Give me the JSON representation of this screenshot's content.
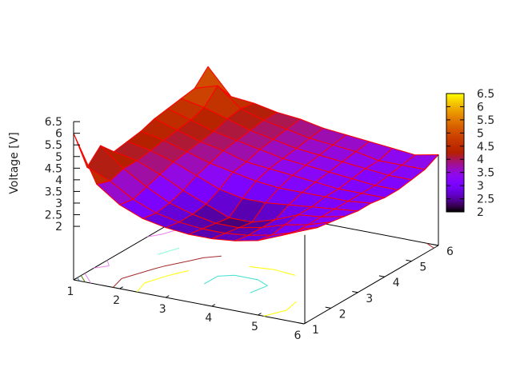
{
  "chart_data": {
    "type": "surface",
    "zlabel": "Voltage [V]",
    "x": [
      1,
      1.5,
      2,
      2.5,
      3,
      3.5,
      4,
      4.5,
      5,
      5.5,
      6
    ],
    "y": [
      1,
      1.5,
      2,
      2.5,
      3,
      3.5,
      4,
      4.5,
      5,
      5.5,
      6
    ],
    "z": [
      [
        6.0,
        4.0,
        3.3,
        2.9,
        2.7,
        2.6,
        2.6,
        2.7,
        2.9,
        3.3,
        3.8
      ],
      [
        4.2,
        3.8,
        3.2,
        2.8,
        2.6,
        2.5,
        2.5,
        2.6,
        2.8,
        3.1,
        3.5
      ],
      [
        4.8,
        4.0,
        3.4,
        2.9,
        2.6,
        2.4,
        2.4,
        2.6,
        2.9,
        3.1,
        3.4
      ],
      [
        4.2,
        4.0,
        3.6,
        3.1,
        2.7,
        2.3,
        2.3,
        2.6,
        3.0,
        3.1,
        3.3
      ],
      [
        4.3,
        4.1,
        3.8,
        3.4,
        3.0,
        2.8,
        2.8,
        2.9,
        3.0,
        3.1,
        3.2
      ],
      [
        4.4,
        4.2,
        3.9,
        3.6,
        3.4,
        3.2,
        3.1,
        3.1,
        3.1,
        3.1,
        3.2
      ],
      [
        4.6,
        4.3,
        4.0,
        3.8,
        3.5,
        3.4,
        3.3,
        3.2,
        3.1,
        3.1,
        3.1
      ],
      [
        4.7,
        4.4,
        4.1,
        3.9,
        3.7,
        3.5,
        3.4,
        3.3,
        3.2,
        3.1,
        3.1
      ],
      [
        4.8,
        4.6,
        4.3,
        4.0,
        3.8,
        3.6,
        3.5,
        3.4,
        3.3,
        3.2,
        3.2
      ],
      [
        4.9,
        5.2,
        4.4,
        4.1,
        3.9,
        3.7,
        3.6,
        3.5,
        3.3,
        3.3,
        3.3
      ],
      [
        5.5,
        4.4,
        4.3,
        4.1,
        4.0,
        3.8,
        3.7,
        3.6,
        3.5,
        3.4,
        3.6
      ]
    ],
    "xlim": [
      1,
      6
    ],
    "ylim": [
      1,
      6
    ],
    "zlim": [
      2,
      6.5
    ],
    "x_ticks": [
      "1",
      "2",
      "3",
      "4",
      "5",
      "6"
    ],
    "y_ticks": [
      "1",
      "2",
      "3",
      "4",
      "5",
      "6"
    ],
    "z_ticks": [
      "6.5",
      "6",
      "5.5",
      "5",
      "4.5",
      "4",
      "3.5",
      "3",
      "2.5",
      "2"
    ],
    "colorbar": {
      "range": [
        2,
        6.5
      ],
      "ticks": [
        "6.5",
        "6",
        "5.5",
        "5",
        "4.5",
        "4",
        "3.5",
        "3",
        "2.5",
        "2"
      ],
      "palette": "black-blue-purple-red-orange-yellow"
    },
    "contour_levels": [
      2.5,
      3,
      3.5,
      4,
      4.5,
      5,
      5.5
    ],
    "contour_colors": [
      "#40e0d0",
      "#ffff00",
      "#a52a2a",
      "#7fffd4",
      "#ee82ee",
      "#4d7f00",
      "#2f6f8f"
    ],
    "grid_color": "#ff0000",
    "contours": "base"
  }
}
